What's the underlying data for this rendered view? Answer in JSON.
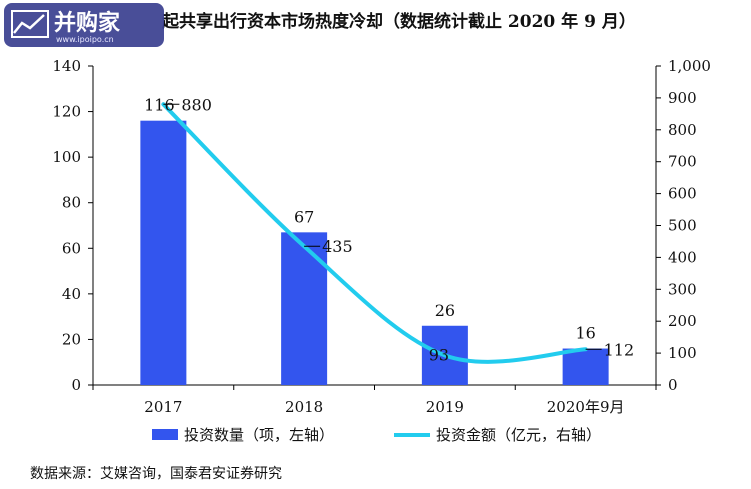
{
  "watermark": {
    "brand": "并购家",
    "url": "www.ipoipo.cn"
  },
  "chart_data": {
    "type": "bar+line",
    "title": "起共享出行资本市场热度冷却（数据统计截止 2020 年 9 月）",
    "categories": [
      "2017",
      "2018",
      "2019",
      "2020年9月"
    ],
    "series": [
      {
        "name": "投资数量（项，左轴）",
        "type": "bar",
        "axis": "left",
        "color": "#3355ee",
        "values": [
          116,
          67,
          26,
          16
        ]
      },
      {
        "name": "投资金额（亿元，右轴）",
        "type": "line",
        "axis": "right",
        "color": "#22ccee",
        "values": [
          880,
          435,
          93,
          112
        ]
      }
    ],
    "left_axis": {
      "min": 0,
      "max": 140,
      "ticks": [
        "0",
        "20",
        "40",
        "60",
        "80",
        "100",
        "120",
        "140"
      ]
    },
    "right_axis": {
      "min": 0,
      "max": 1000,
      "ticks": [
        "0",
        "100",
        "200",
        "300",
        "400",
        "500",
        "600",
        "700",
        "800",
        "900",
        "1,000"
      ]
    },
    "bar_labels": [
      "116",
      "67",
      "26",
      "16"
    ],
    "line_labels": [
      "880",
      "435",
      "93",
      "112"
    ],
    "grid": false,
    "legend_position": "bottom"
  },
  "source_note": "数据来源：艾媒咨询，国泰君安证券研究"
}
